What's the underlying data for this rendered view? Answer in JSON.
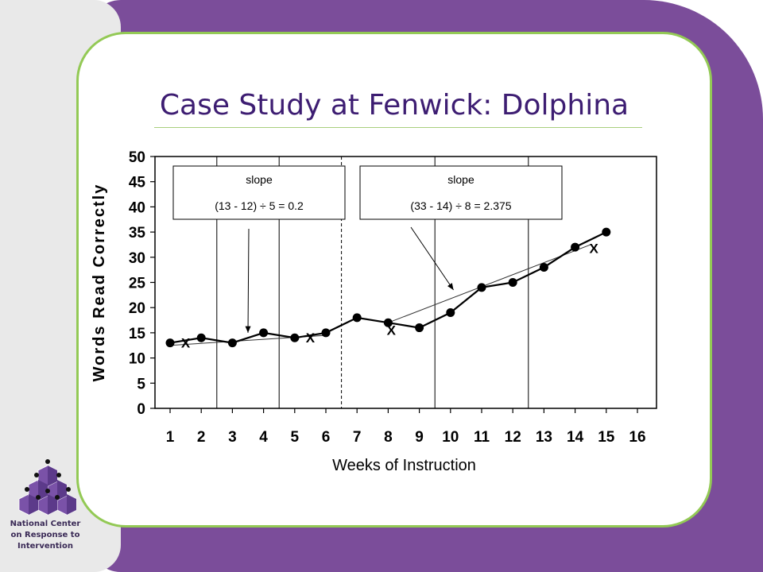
{
  "slide": {
    "title": "Case Study at Fenwick: Dolphina",
    "logo_caption": [
      "National Center",
      "on Response to",
      "Intervention"
    ]
  },
  "colors": {
    "background_purple": "#7b4d9a",
    "card_border_green": "#93c955",
    "title_color": "#3d1d72",
    "logo_purple": "#7a52a8"
  },
  "chart_data": {
    "type": "line",
    "title": "",
    "xlabel": "Weeks of Instruction",
    "ylabel": "Words Read Correctly",
    "x_ticks": [
      "1",
      "2",
      "3",
      "4",
      "5",
      "6",
      "7",
      "8",
      "9",
      "10",
      "11",
      "12",
      "13",
      "14",
      "15",
      "16"
    ],
    "y_ticks": [
      "0",
      "5",
      "10",
      "15",
      "20",
      "25",
      "30",
      "35",
      "40",
      "45",
      "50"
    ],
    "xlim": [
      0.5,
      16.5
    ],
    "ylim": [
      0,
      50
    ],
    "grid": false,
    "series": [
      {
        "x": [
          1,
          2,
          3,
          4,
          5,
          6,
          7,
          8,
          9,
          10,
          11,
          12,
          13,
          14,
          15
        ],
        "y": [
          13,
          14,
          13,
          15,
          14,
          15,
          18,
          17,
          16,
          19,
          24,
          25,
          28,
          32,
          35
        ]
      }
    ],
    "phase_lines_solid": [
      2.5,
      4.5,
      9.5,
      12.5
    ],
    "phase_line_dashed": 6.5,
    "trend_lines": [
      {
        "from": [
          1,
          12.5
        ],
        "to": [
          6,
          14.5
        ]
      },
      {
        "from": [
          8,
          17
        ],
        "to": [
          14.5,
          32.5
        ]
      }
    ],
    "x_markers": [
      {
        "label": "X",
        "x": 1.5,
        "y": 13
      },
      {
        "label": "X",
        "x": 5.5,
        "y": 14
      },
      {
        "label": "X",
        "x": 8.1,
        "y": 15.5
      },
      {
        "label": "X",
        "x": 14.6,
        "y": 31.8
      }
    ],
    "annotations": [
      {
        "line1": "slope",
        "line2": "(13 - 12) ÷ 5 = 0.2",
        "arrow_to": [
          3.5,
          15
        ]
      },
      {
        "line1": "slope",
        "line2": "(33 - 14) ÷ 8 = 2.375",
        "arrow_to": [
          10.3,
          23.5
        ]
      }
    ]
  }
}
